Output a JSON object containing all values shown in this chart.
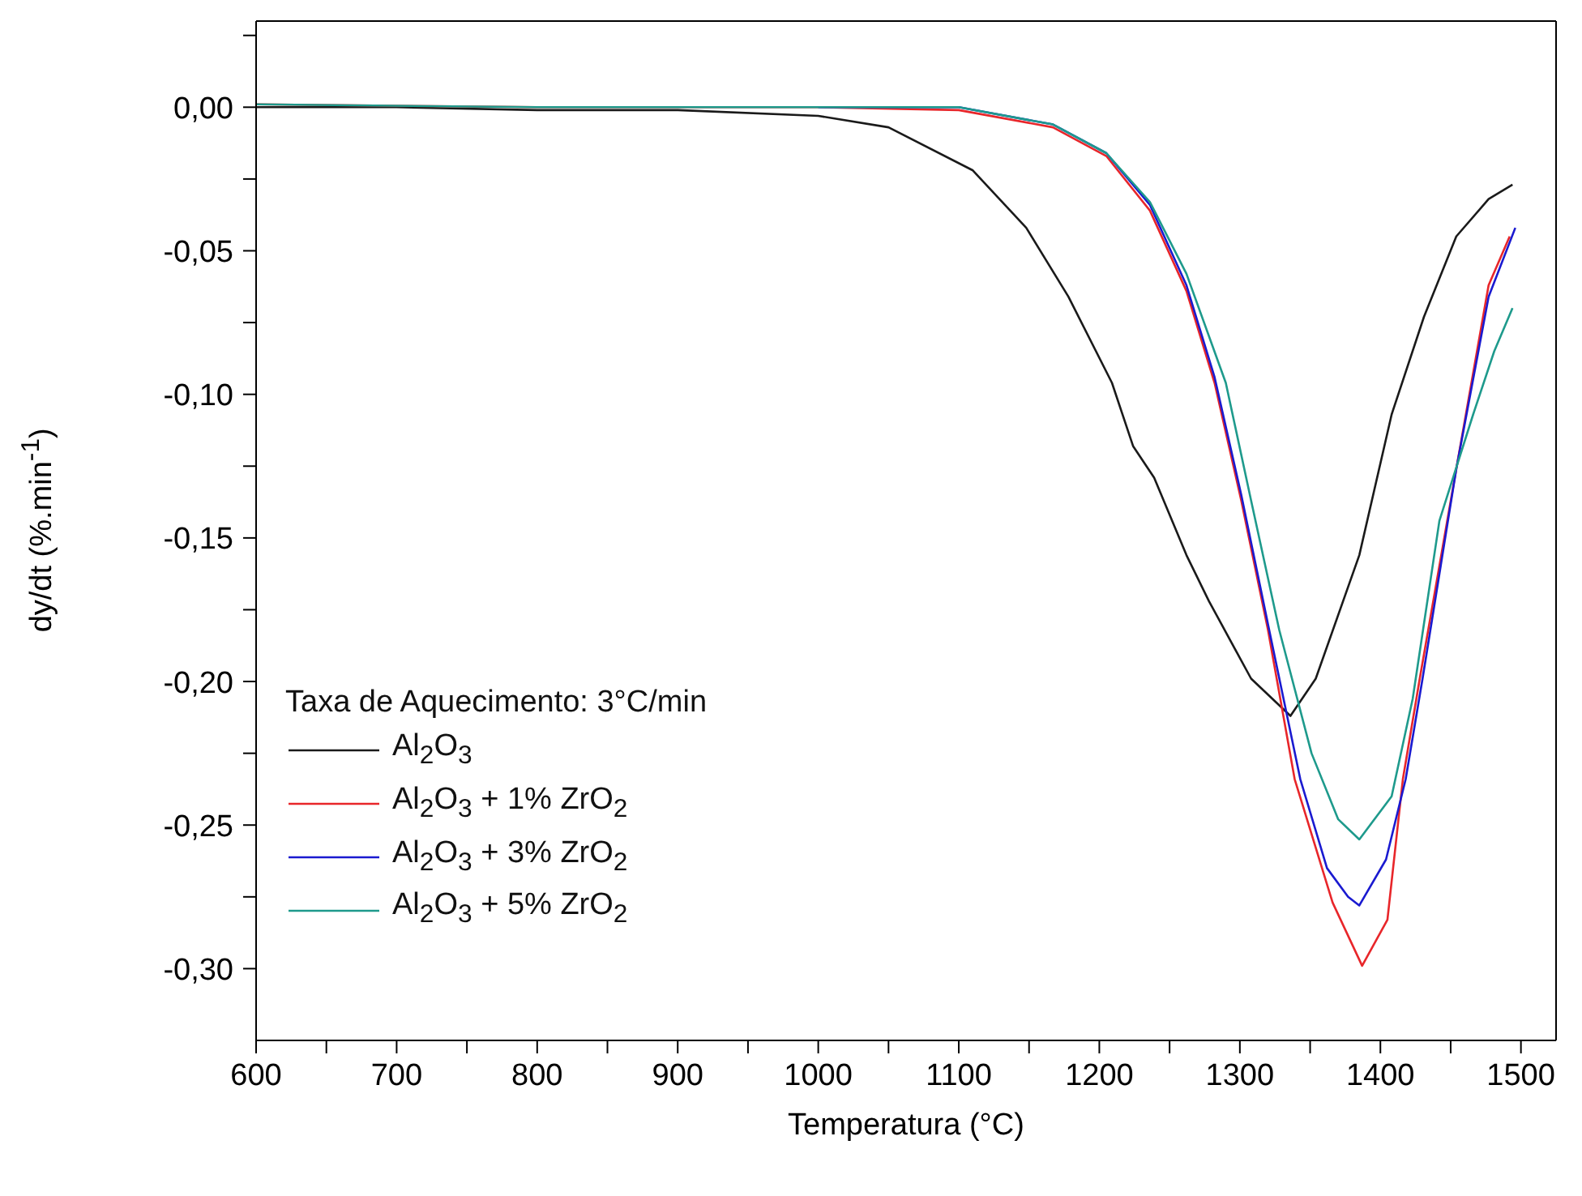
{
  "chart_data": {
    "type": "line",
    "xlabel": "Temperatura (°C)",
    "ylabel": "dy/dt (%.min$^{-1}$)",
    "legend_title": "Taxa de Aquecimento: 3°C/min",
    "legend": "bottom left",
    "marker": "none",
    "line_style": "solid",
    "grid": false,
    "xlim": [
      600,
      1525
    ],
    "ylim": [
      -0.325,
      0.03
    ],
    "xticks": [
      600,
      {
        "value": 650,
        "label": null
      },
      700,
      {
        "value": 750,
        "label": null
      },
      800,
      {
        "value": 850,
        "label": null
      },
      900,
      {
        "value": 950,
        "label": null
      },
      1000,
      {
        "value": 1050,
        "label": null
      },
      1100,
      {
        "value": 1150,
        "label": null
      },
      1200,
      {
        "value": 1250,
        "label": null
      },
      1300,
      {
        "value": 1350,
        "label": null
      },
      1400,
      {
        "value": 1450,
        "label": null
      },
      1500
    ],
    "yticks": [
      {
        "value": 0.025,
        "label": null
      },
      {
        "value": 0,
        "label": "0,00"
      },
      {
        "value": -0.025,
        "label": null
      },
      {
        "value": -0.05,
        "label": "-0,05"
      },
      {
        "value": -0.075,
        "label": null
      },
      {
        "value": -0.1,
        "label": "-0,10"
      },
      {
        "value": -0.125,
        "label": null
      },
      {
        "value": -0.15,
        "label": "-0,15"
      },
      {
        "value": -0.175,
        "label": null
      },
      {
        "value": -0.2,
        "label": "-0,20"
      },
      {
        "value": -0.225,
        "label": null
      },
      {
        "value": -0.25,
        "label": "-0,25"
      },
      {
        "value": -0.275,
        "label": null
      },
      {
        "value": -0.3,
        "label": "-0,30"
      }
    ],
    "series": [
      {
        "name": "Al$_{2}$O$_{3}$",
        "color": "#1a1a1a",
        "x": [
          600,
          700,
          800,
          900,
          1000,
          1050,
          1110,
          1148,
          1178,
          1209,
          1224,
          1239,
          1262,
          1278,
          1308,
          1336,
          1354,
          1385,
          1408,
          1431,
          1454,
          1477,
          1494
        ],
        "values": [
          0,
          0,
          -0.001,
          -0.001,
          -0.003,
          -0.007,
          -0.022,
          -0.042,
          -0.066,
          -0.096,
          -0.118,
          -0.129,
          -0.156,
          -0.172,
          -0.199,
          -0.212,
          -0.199,
          -0.156,
          -0.107,
          -0.073,
          -0.045,
          -0.032,
          -0.027
        ]
      },
      {
        "name": "Al$_{2}$O$_{3}$ + 1% ZrO$_{2}$",
        "color": "#e8262a",
        "x": [
          600,
          800,
          1000,
          1100,
          1167,
          1205,
          1236,
          1262,
          1282,
          1301,
          1320,
          1339,
          1366,
          1387,
          1405,
          1416,
          1428,
          1454,
          1477,
          1492
        ],
        "values": [
          0.001,
          0,
          0,
          -0.001,
          -0.007,
          -0.017,
          -0.036,
          -0.064,
          -0.096,
          -0.137,
          -0.182,
          -0.234,
          -0.277,
          -0.299,
          -0.283,
          -0.234,
          -0.199,
          -0.126,
          -0.062,
          -0.045
        ]
      },
      {
        "name": "Al$_{2}$O$_{3}$ + 3% ZrO$_{2}$",
        "color": "#1a1ad0",
        "x": [
          1000,
          1100,
          1167,
          1205,
          1236,
          1262,
          1282,
          1301,
          1320,
          1343,
          1362,
          1377,
          1385,
          1404,
          1418,
          1430,
          1454,
          1477,
          1496
        ],
        "values": [
          0,
          0,
          -0.006,
          -0.016,
          -0.034,
          -0.062,
          -0.094,
          -0.135,
          -0.18,
          -0.234,
          -0.265,
          -0.275,
          -0.278,
          -0.262,
          -0.234,
          -0.199,
          -0.126,
          -0.066,
          -0.042
        ]
      },
      {
        "name": "Al$_{2}$O$_{3}$ + 5% ZrO$_{2}$",
        "color": "#1e9a8c",
        "x": [
          600,
          800,
          1000,
          1100,
          1167,
          1205,
          1236,
          1262,
          1290,
          1308,
          1328,
          1351,
          1370,
          1385,
          1408,
          1423,
          1442,
          1466,
          1481,
          1494
        ],
        "values": [
          0.001,
          0,
          0,
          0,
          -0.006,
          -0.016,
          -0.033,
          -0.058,
          -0.096,
          -0.137,
          -0.182,
          -0.225,
          -0.248,
          -0.255,
          -0.24,
          -0.206,
          -0.144,
          -0.107,
          -0.085,
          -0.07
        ]
      }
    ]
  }
}
